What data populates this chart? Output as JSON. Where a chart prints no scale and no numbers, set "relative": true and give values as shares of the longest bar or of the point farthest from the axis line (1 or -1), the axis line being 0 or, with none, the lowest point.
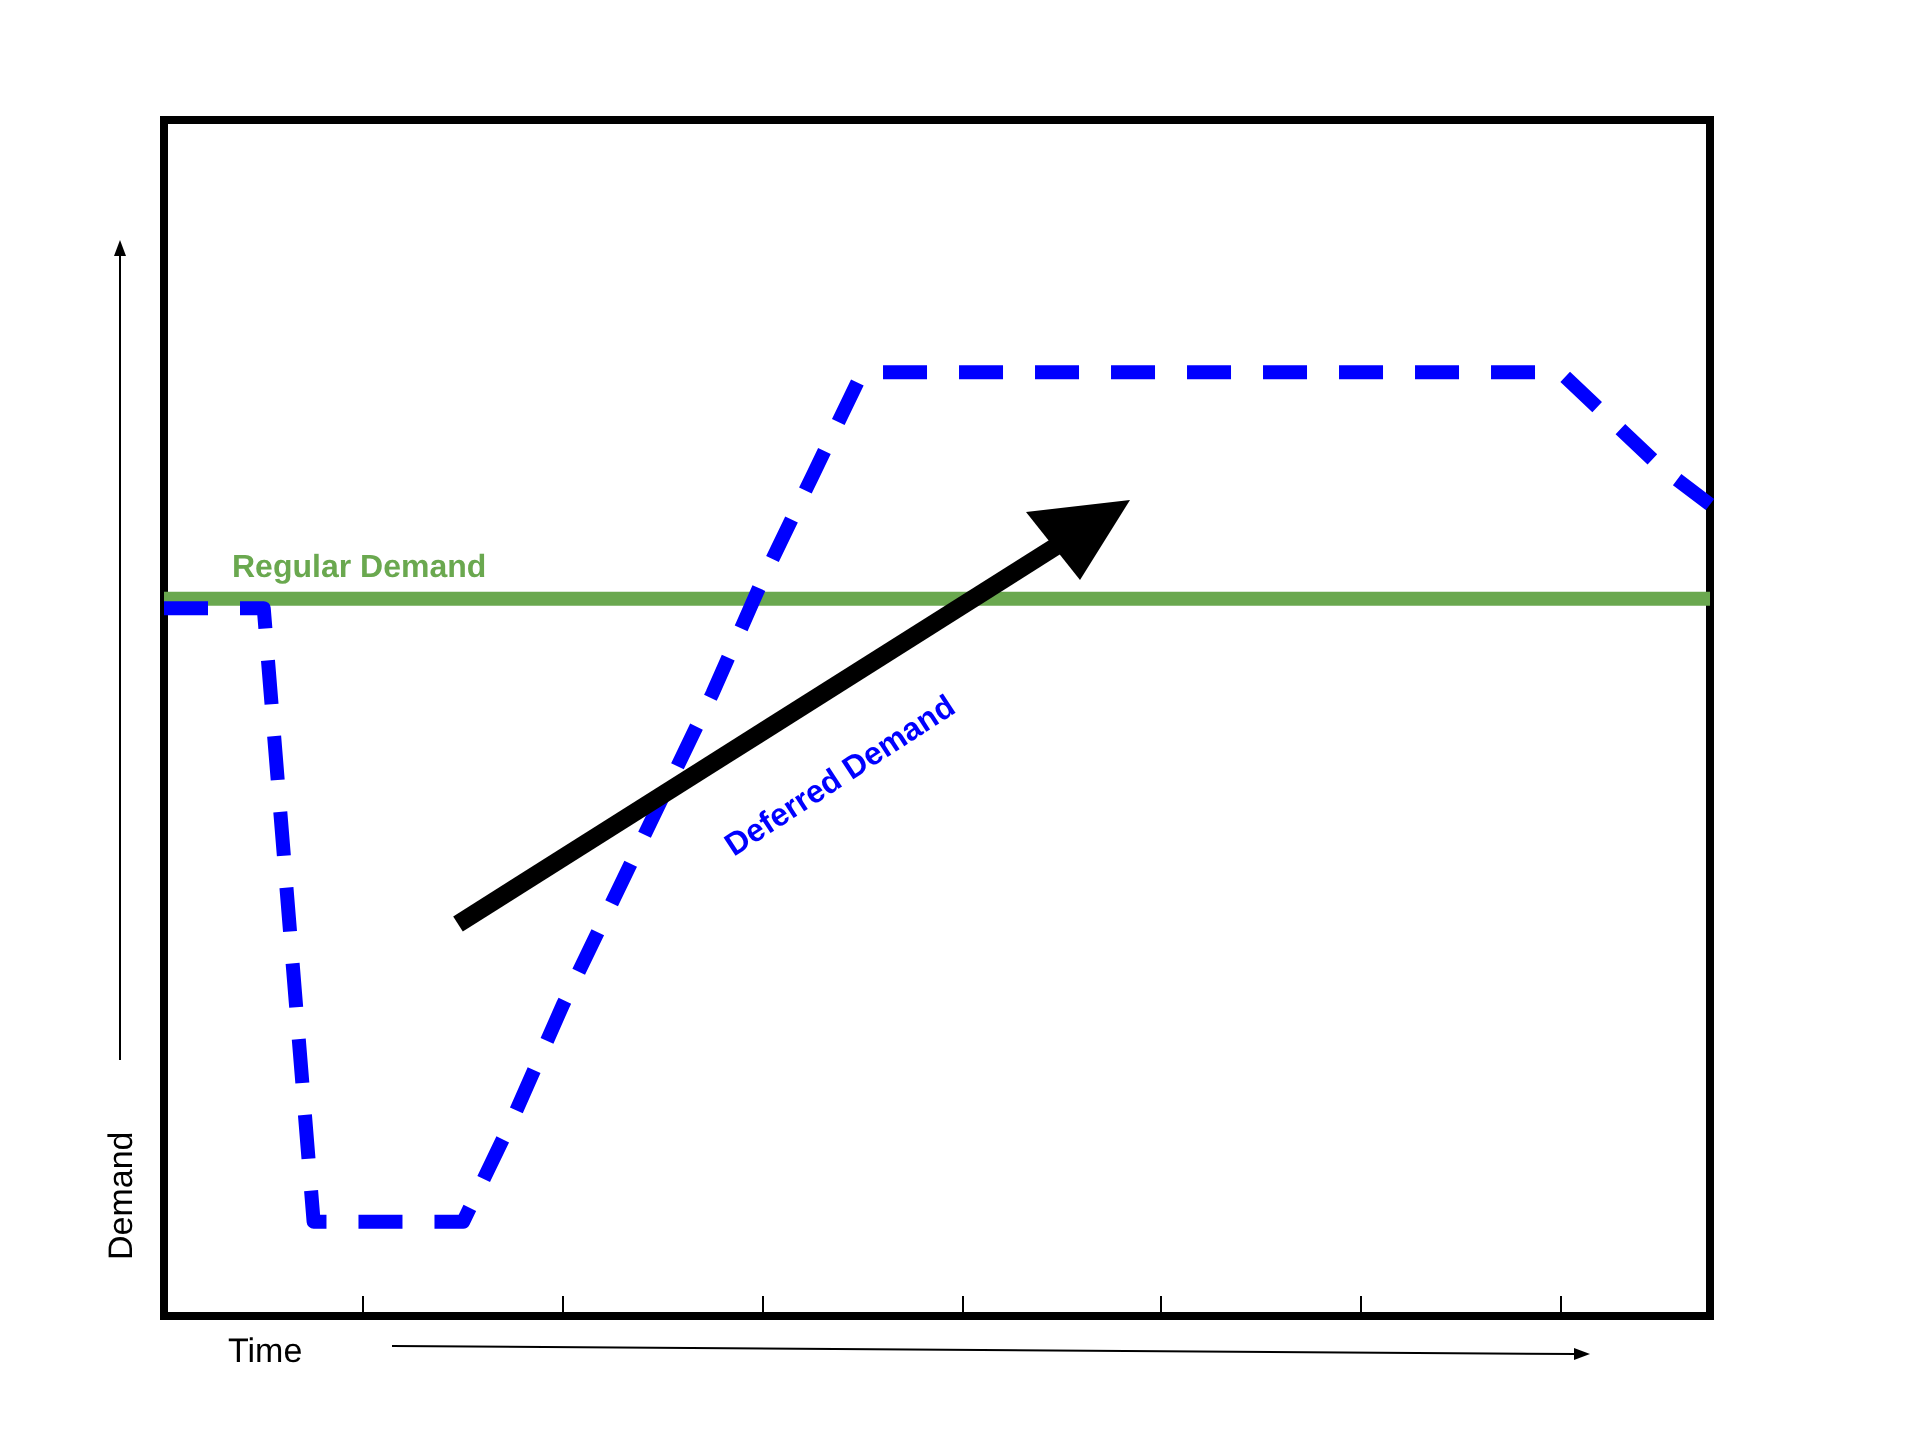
{
  "chart_data": {
    "type": "line",
    "relative": true,
    "xlabel": "Time",
    "ylabel": "Demand",
    "categories": [
      null,
      null,
      null,
      null,
      null,
      null,
      null,
      null,
      null,
      null,
      null,
      null,
      null,
      null,
      null,
      null,
      null,
      null,
      null,
      null,
      null,
      null,
      null,
      null,
      null,
      null,
      null,
      null,
      null,
      null,
      null,
      null
    ],
    "grid": false,
    "legend": false,
    "marker": "none",
    "series": [
      {
        "name": "Regular Demand",
        "color": "#6aa84f",
        "line_style": "solid",
        "values": [
          0.76,
          0.76,
          0.76,
          0.76,
          0.76,
          0.76,
          0.76,
          0.76,
          0.76,
          0.76,
          0.76,
          0.76,
          0.76,
          0.76,
          0.76,
          0.76,
          0.76,
          0.76,
          0.76,
          0.76,
          0.76,
          0.76,
          0.76,
          0.76,
          0.76,
          0.76,
          0.76,
          0.76,
          0.76,
          0.76,
          0.76,
          0.76
        ]
      },
      {
        "name": "Deferred Demand",
        "color": "#0000ff",
        "line_style": "dashed",
        "values": [
          0.75,
          0.75,
          0.75,
          0.1,
          0.1,
          0.1,
          0.1,
          0.21,
          0.33,
          0.44,
          0.55,
          0.66,
          0.78,
          0.89,
          1,
          1,
          1,
          1,
          1,
          1,
          1,
          1,
          1,
          1,
          1,
          1,
          1,
          1,
          1,
          0.95,
          0.9,
          0.86
        ]
      }
    ]
  }
}
